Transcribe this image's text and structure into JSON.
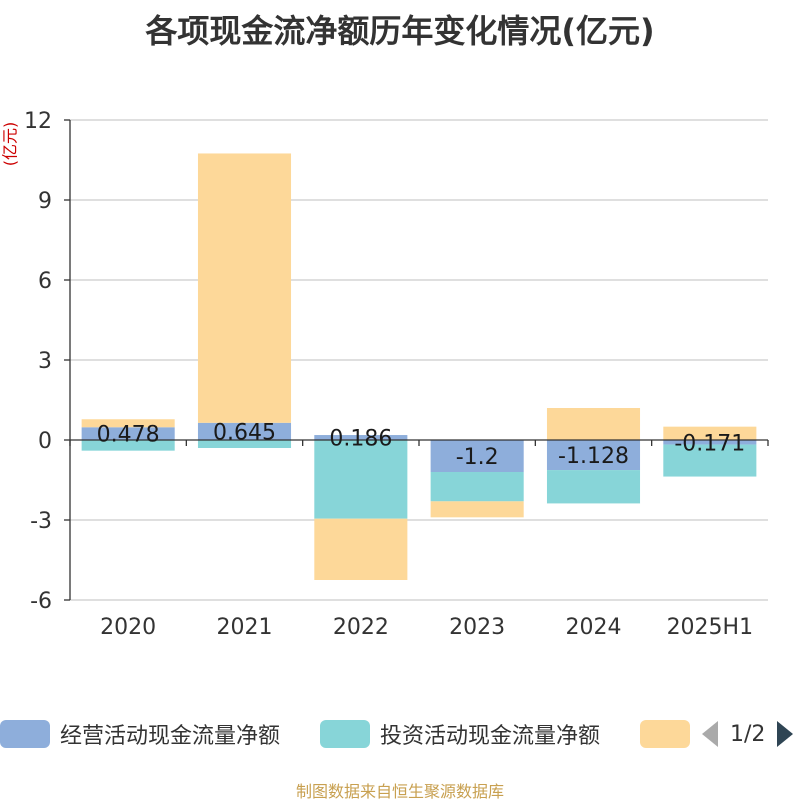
{
  "chart_data": {
    "type": "bar",
    "stacked": true,
    "title": "各项现金流净额历年变化情况(亿元)",
    "unit_label": "(亿元)",
    "categories": [
      "2020",
      "2021",
      "2022",
      "2023",
      "2024",
      "2025H1"
    ],
    "ylim": [
      -6,
      12
    ],
    "yticks": [
      12,
      9,
      6,
      3,
      0,
      -3,
      -6
    ],
    "grid": true,
    "legend_position": "bottom",
    "series": [
      {
        "name": "经营活动现金流量净额",
        "color": "#8eaedb",
        "values": [
          0.478,
          0.645,
          0.186,
          -1.2,
          -1.128,
          -0.171
        ],
        "data_labels": [
          "0.478",
          "0.645",
          "0.186",
          "-1.2",
          "-1.128",
          "-0.171"
        ]
      },
      {
        "name": "投资活动现金流量净额",
        "color": "#87d5d8",
        "values": [
          -0.4,
          -0.3,
          -2.95,
          -1.1,
          -1.25,
          -1.2
        ]
      },
      {
        "name": "",
        "color": "#fdd899",
        "values": [
          0.3,
          10.1,
          -2.3,
          -0.6,
          1.2,
          0.5
        ]
      }
    ]
  },
  "legend": {
    "page_indicator": "1/2",
    "prev_color": "#aaaaaa",
    "next_color": "#2f4554"
  },
  "source_note": "制图数据来自恒生聚源数据库"
}
